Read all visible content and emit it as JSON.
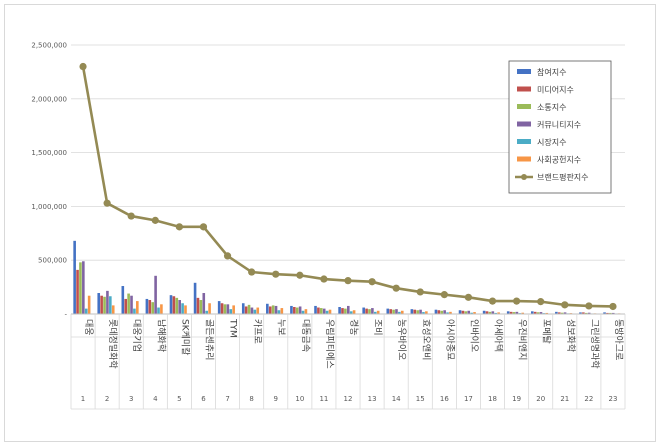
{
  "chart_data": {
    "type": "bar",
    "title": "",
    "xlabel": "",
    "ylabel": "",
    "ylim": [
      0,
      2500000
    ],
    "yticks": [
      0,
      500000,
      1000000,
      1500000,
      2000000,
      2500000
    ],
    "ytick_labels": [
      "-",
      "500,000",
      "1,000,000",
      "1,500,000",
      "2,000,000",
      "2,500,000"
    ],
    "grid": true,
    "legend_position": "top-right",
    "categories": [
      "대웅",
      "롯데정밀화학",
      "대웅기업",
      "남해화학",
      "SK케미칼",
      "골든센츄리",
      "TYM",
      "카프로",
      "누보",
      "대동금속",
      "우림피티에스",
      "경농",
      "조비",
      "농우바이오",
      "효성오앤비",
      "아시아종묘",
      "인바이오",
      "아세아텍",
      "우진비앤지",
      "포메탈",
      "성보화학",
      "그린생명과학",
      "동방아그로"
    ],
    "category_numbers": [
      "1",
      "2",
      "3",
      "4",
      "5",
      "6",
      "7",
      "8",
      "9",
      "10",
      "11",
      "12",
      "13",
      "14",
      "15",
      "16",
      "17",
      "18",
      "19",
      "20",
      "21",
      "22",
      "23"
    ],
    "series": [
      {
        "name": "참여지수",
        "type": "bar",
        "color": "#4472c4",
        "values": [
          680000,
          195000,
          260000,
          140000,
          175000,
          290000,
          120000,
          100000,
          95000,
          75000,
          75000,
          65000,
          60000,
          50000,
          45000,
          40000,
          35000,
          30000,
          25000,
          25000,
          20000,
          15000,
          15000
        ]
      },
      {
        "name": "미디어지수",
        "type": "bar",
        "color": "#c0504d",
        "values": [
          410000,
          170000,
          140000,
          130000,
          165000,
          150000,
          100000,
          70000,
          70000,
          65000,
          60000,
          55000,
          50000,
          45000,
          40000,
          35000,
          30000,
          25000,
          20000,
          20000,
          15000,
          15000,
          10000
        ]
      },
      {
        "name": "소통지수",
        "type": "bar",
        "color": "#9bbb59",
        "values": [
          480000,
          160000,
          190000,
          110000,
          150000,
          130000,
          90000,
          85000,
          80000,
          60000,
          55000,
          50000,
          45000,
          40000,
          35000,
          30000,
          25000,
          20000,
          18000,
          16000,
          12000,
          10000,
          10000
        ]
      },
      {
        "name": "커뮤니티지수",
        "type": "bar",
        "color": "#8064a2",
        "values": [
          490000,
          215000,
          170000,
          355000,
          130000,
          195000,
          90000,
          60000,
          75000,
          70000,
          50000,
          75000,
          55000,
          45000,
          40000,
          35000,
          30000,
          25000,
          20000,
          18000,
          15000,
          12000,
          10000
        ]
      },
      {
        "name": "시장지수",
        "type": "bar",
        "color": "#4bacc6",
        "values": [
          50000,
          165000,
          50000,
          60000,
          100000,
          30000,
          45000,
          40000,
          35000,
          30000,
          30000,
          25000,
          20000,
          20000,
          18000,
          15000,
          12000,
          10000,
          8000,
          8000,
          6000,
          5000,
          5000
        ]
      },
      {
        "name": "사회공헌지수",
        "type": "bar",
        "color": "#f79646",
        "values": [
          170000,
          80000,
          120000,
          90000,
          80000,
          100000,
          80000,
          60000,
          55000,
          45000,
          40000,
          35000,
          30000,
          30000,
          25000,
          20000,
          18000,
          15000,
          12000,
          10000,
          8000,
          6000,
          6000
        ]
      },
      {
        "name": "브랜드평판지수",
        "type": "line",
        "color": "#948a54",
        "values": [
          2300000,
          1030000,
          910000,
          870000,
          810000,
          810000,
          540000,
          390000,
          370000,
          360000,
          325000,
          310000,
          300000,
          240000,
          205000,
          180000,
          155000,
          120000,
          120000,
          115000,
          85000,
          75000,
          70000
        ]
      }
    ]
  }
}
